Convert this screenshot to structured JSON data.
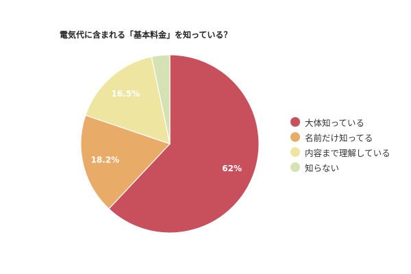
{
  "chart_data": {
    "type": "pie",
    "title": "電気代に含まれる「基本料金」を知っている？",
    "slices": [
      {
        "label": "大体知っている",
        "value": 62,
        "display": "62%",
        "color": "#c8505d"
      },
      {
        "label": "名前だけ知ってる",
        "value": 18.2,
        "display": "18.2%",
        "color": "#e8ab68"
      },
      {
        "label": "内容まで理解している",
        "value": 16.5,
        "display": "16.5%",
        "color": "#eee6a0"
      },
      {
        "label": "知らない",
        "value": 3.3,
        "display": "",
        "color": "#d4e2b4"
      }
    ],
    "legend_position": "right",
    "start_angle": "top",
    "direction": "clockwise"
  }
}
